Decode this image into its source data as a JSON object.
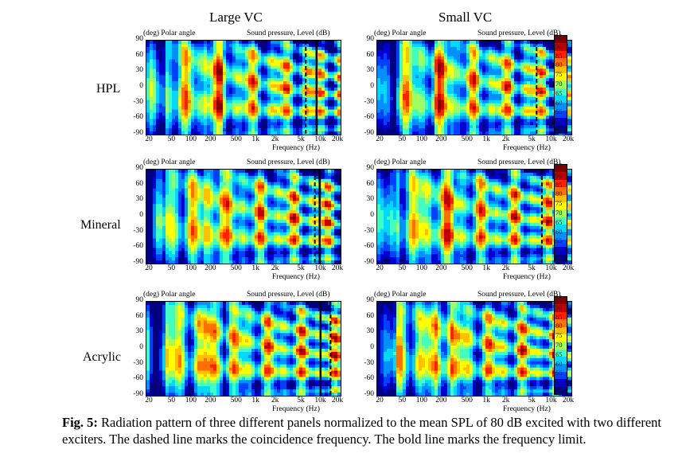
{
  "figure": {
    "columns": [
      "Large VC",
      "Small VC"
    ],
    "rows": [
      "HPL",
      "Mineral",
      "Acrylic"
    ],
    "panel_top_left": "(deg) Polar angle",
    "panel_top_right": "Sound pressure, Level (dB)",
    "x_axis_label": "Frequency (Hz)",
    "y_ticks": [
      "90",
      "60",
      "30",
      "0",
      "-30",
      "-60",
      "-90"
    ],
    "x_ticks": [
      "20",
      "50",
      "100",
      "200",
      "500",
      "1k",
      "2k",
      "5k",
      "10k",
      "20k"
    ],
    "colorbar_ticks": [
      "95",
      "90",
      "85",
      "80",
      "75",
      "70",
      "65",
      "60",
      "55",
      "50",
      "45"
    ],
    "caption_label": "Fig. 5:",
    "caption_text": "Radiation pattern of three different panels normalized to the mean SPL of 80 dB excited with two different exciters. The dashed line marks the coincidence frequency. The bold line marks the frequency limit."
  },
  "chart_data": {
    "type": "heatmap",
    "x_scale": "log",
    "xlim_hz": [
      20,
      20000
    ],
    "ylim_deg": [
      -90,
      90
    ],
    "zlim_db": [
      45,
      95
    ],
    "colors": [
      "#000080",
      "#0000d0",
      "#0040ff",
      "#0090ff",
      "#00d8ff",
      "#40ffc0",
      "#a0ff60",
      "#ffff00",
      "#ffc000",
      "#ff7000",
      "#ff2000",
      "#c00000",
      "#800000"
    ],
    "panels": [
      {
        "row": "HPL",
        "column": "Large VC",
        "coincidence_hz": 5800,
        "limit_hz": 8500
      },
      {
        "row": "HPL",
        "column": "Small VC",
        "coincidence_hz": 5800,
        "limit_hz": null
      },
      {
        "row": "Mineral",
        "column": "Large VC",
        "coincidence_hz": 8000,
        "limit_hz": 9500
      },
      {
        "row": "Mineral",
        "column": "Small VC",
        "coincidence_hz": 7000,
        "limit_hz": null
      },
      {
        "row": "Acrylic",
        "column": "Large VC",
        "coincidence_hz": 14000,
        "limit_hz": 9800
      },
      {
        "row": "Acrylic",
        "column": "Small VC",
        "coincidence_hz": 14500,
        "limit_hz": null
      }
    ]
  }
}
